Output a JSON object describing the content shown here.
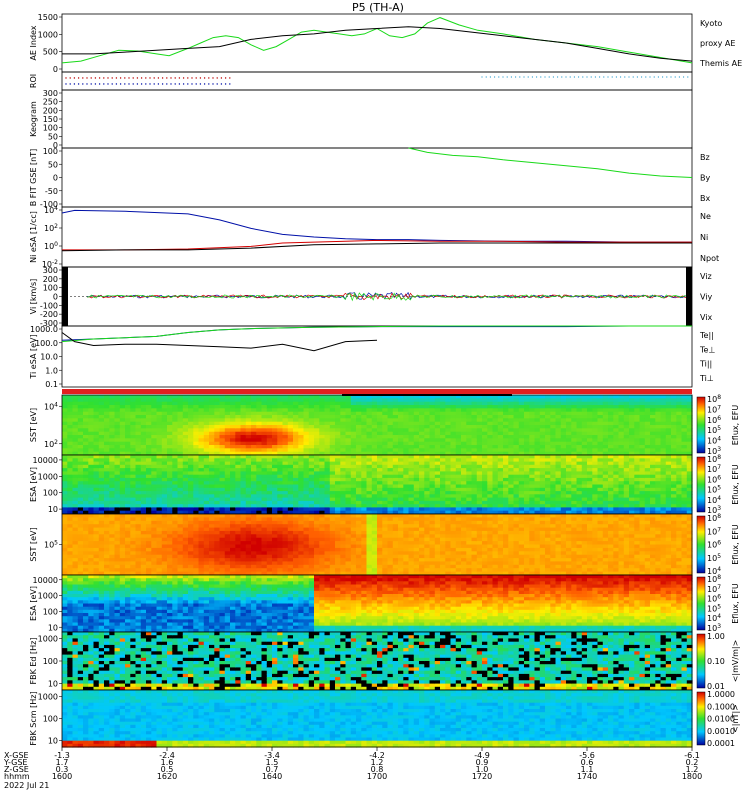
{
  "title": "P5 (TH-A)",
  "date": "2022 Jul 21",
  "colors": {
    "red": "#d40000",
    "green": "#19d919",
    "blue": "#0010a8",
    "black": "#000000"
  },
  "xaxis": {
    "row_labels": [
      "X-GSE",
      "Y-GSE",
      "Z-GSE",
      "hhmm"
    ],
    "ticks": [
      {
        "x": "-1.3",
        "y": "1.7",
        "z": "0.3",
        "t": "1600"
      },
      {
        "x": "-2.4",
        "y": "1.6",
        "z": "0.5",
        "t": "1620"
      },
      {
        "x": "-3.4",
        "y": "1.5",
        "z": "0.7",
        "t": "1640"
      },
      {
        "x": "-4.2",
        "y": "1.2",
        "z": "0.8",
        "t": "1700"
      },
      {
        "x": "-4.9",
        "y": "0.9",
        "z": "1.0",
        "t": "1720"
      },
      {
        "x": "-5.6",
        "y": "0.6",
        "z": "1.1",
        "t": "1740"
      },
      {
        "x": "-6.1",
        "y": "0.2",
        "z": "1.2",
        "t": "1800"
      }
    ]
  },
  "chart_data": [
    {
      "type": "line",
      "ylabel": "AE Index",
      "ylim": [
        0,
        1600
      ],
      "yticks": [
        "0",
        "500",
        "1000",
        "1500"
      ],
      "legend": [
        {
          "text": "Kyoto",
          "color": "green"
        },
        {
          "text": "proxy AE",
          "color": "green"
        },
        {
          "text": "Themis AE",
          "color": "black"
        }
      ],
      "series": [
        {
          "name": "Kyoto proxy AE",
          "color": "green",
          "x": [
            0,
            3,
            6,
            9,
            12,
            15,
            17,
            20,
            22,
            24,
            26,
            28,
            30,
            32,
            34,
            36,
            38,
            40,
            42,
            44,
            46,
            48,
            50,
            52,
            54,
            56,
            58,
            60,
            63,
            66,
            70,
            75,
            80,
            85,
            90,
            95,
            100
          ],
          "y": [
            250,
            300,
            450,
            600,
            580,
            500,
            450,
            650,
            800,
            950,
            1000,
            950,
            750,
            600,
            700,
            900,
            1100,
            1150,
            1100,
            1050,
            1000,
            1050,
            1200,
            1000,
            950,
            1050,
            1350,
            1500,
            1300,
            1150,
            1050,
            900,
            800,
            700,
            550,
            400,
            250
          ]
        },
        {
          "name": "Themis AE",
          "color": "black",
          "x": [
            0,
            5,
            10,
            15,
            20,
            25,
            30,
            35,
            40,
            45,
            50,
            55,
            60,
            65,
            70,
            75,
            80,
            85,
            90,
            95,
            100
          ],
          "y": [
            500,
            500,
            550,
            600,
            650,
            700,
            900,
            1000,
            1050,
            1150,
            1200,
            1250,
            1200,
            1100,
            1000,
            900,
            800,
            650,
            500,
            380,
            300
          ]
        }
      ]
    },
    {
      "type": "scatter",
      "ylabel": "ROI",
      "ylim": [
        0,
        1
      ],
      "yticks": []
    },
    {
      "type": "line",
      "ylabel": "Keogram",
      "ylim": [
        0,
        300
      ],
      "yticks": [
        "0",
        "50",
        "100",
        "150",
        "200",
        "250",
        "300"
      ]
    },
    {
      "type": "line",
      "ylabel": "B FIT GSE [nT]",
      "ylim": [
        -100,
        100
      ],
      "yticks": [
        "-100",
        "-50",
        "0",
        "50",
        "100"
      ],
      "legend": [
        {
          "text": "Bz",
          "color": "red"
        },
        {
          "text": "By",
          "color": "green"
        },
        {
          "text": "Bx",
          "color": "blue"
        }
      ],
      "series": [
        {
          "name": "By",
          "color": "green",
          "x": [
            55,
            58,
            62,
            66,
            70,
            75,
            80,
            85,
            90,
            95,
            100
          ],
          "y": [
            100,
            85,
            75,
            70,
            60,
            50,
            40,
            30,
            15,
            5,
            0
          ]
        }
      ]
    },
    {
      "type": "line",
      "ylabel": "Ni eSA [1/cc]",
      "ylim": [
        -2,
        5
      ],
      "log": true,
      "yticks": [
        "10^-2",
        "10^0",
        "10^2",
        "10^4"
      ],
      "legend": [
        {
          "text": "Ne",
          "color": "red"
        },
        {
          "text": "Ni",
          "color": "black"
        },
        {
          "text": "Npot",
          "color": "blue"
        }
      ],
      "series": [
        {
          "name": "Npot",
          "color": "blue",
          "x": [
            0,
            2,
            10,
            20,
            25,
            30,
            35,
            40,
            45,
            50,
            55,
            60,
            70,
            80,
            90,
            100
          ],
          "y": [
            4.3,
            4.6,
            4.5,
            4.2,
            3.5,
            2.5,
            1.8,
            1.5,
            1.3,
            1.2,
            1.2,
            1.1,
            1.0,
            1.0,
            0.9,
            0.9
          ]
        },
        {
          "name": "Ne",
          "color": "red",
          "x": [
            0,
            10,
            20,
            30,
            35,
            40,
            45,
            50,
            60,
            70,
            80,
            90,
            100
          ],
          "y": [
            0,
            0,
            0.1,
            0.4,
            0.8,
            0.9,
            1.0,
            1.1,
            1.0,
            1.0,
            0.9,
            0.9,
            0.9
          ]
        },
        {
          "name": "Ni",
          "color": "black",
          "x": [
            0,
            10,
            20,
            30,
            40,
            50,
            60,
            70,
            80,
            90,
            100
          ],
          "y": [
            -0.1,
            0,
            0,
            0.2,
            0.6,
            0.7,
            0.8,
            0.8,
            0.8,
            0.8,
            0.8
          ]
        }
      ]
    },
    {
      "type": "line",
      "ylabel": "Vi [km/s]",
      "ylim": [
        -350,
        350
      ],
      "yticks": [
        "-300",
        "-200",
        "-100",
        "0",
        "100",
        "200",
        "300"
      ],
      "legend": [
        {
          "text": "Viz",
          "color": "red"
        },
        {
          "text": "Viy",
          "color": "green"
        },
        {
          "text": "Vix",
          "color": "blue"
        }
      ]
    },
    {
      "type": "line",
      "ylabel": "Ti eSA [eV]",
      "ylim": [
        -1.2,
        3.5
      ],
      "log": true,
      "yticks": [
        "0.1",
        "1.0",
        "10.0",
        "100.0",
        "1000.0"
      ],
      "legend": [
        {
          "text": "Te||",
          "color": "black"
        },
        {
          "text": "Te⊥",
          "color": "red"
        },
        {
          "text": "Ti||",
          "color": "green"
        },
        {
          "text": "Ti⊥",
          "color": "blue"
        }
      ],
      "series": [
        {
          "name": "Ti⊥",
          "color": "blue",
          "x": [
            0,
            5,
            10,
            15,
            20,
            25,
            30,
            40,
            50,
            60,
            70,
            80,
            90,
            100
          ],
          "y": [
            2.4,
            2.5,
            2.6,
            2.7,
            3.0,
            3.2,
            3.3,
            3.4,
            3.45,
            3.45,
            3.45,
            3.45,
            3.5,
            3.5
          ]
        },
        {
          "name": "Ti||",
          "color": "green",
          "x": [
            0,
            5,
            10,
            15,
            20,
            25,
            30,
            40,
            50,
            60,
            70,
            80,
            90,
            100
          ],
          "y": [
            2.3,
            2.5,
            2.6,
            2.7,
            3.0,
            3.2,
            3.3,
            3.4,
            3.45,
            3.5,
            3.5,
            3.5,
            3.5,
            3.5
          ]
        },
        {
          "name": "Te||",
          "color": "black",
          "x": [
            0,
            2,
            5,
            10,
            15,
            20,
            25,
            30,
            35,
            40,
            45,
            50
          ],
          "y": [
            3.0,
            2.3,
            2.0,
            2.1,
            2.1,
            2.0,
            1.9,
            1.8,
            2.1,
            1.6,
            2.3,
            2.4
          ]
        }
      ]
    },
    {
      "type": "heatmap",
      "ylabel": "SST [eV]",
      "yticks": [
        "10^2",
        "10^4"
      ],
      "colorbar": {
        "label": "Eflux, EFU",
        "ticks": [
          "10^3",
          "10^4",
          "10^5",
          "10^6",
          "10^7",
          "10^8"
        ]
      }
    },
    {
      "type": "heatmap",
      "ylabel": "ESA [eV]",
      "yticks": [
        "10",
        "100",
        "1000",
        "10000"
      ],
      "colorbar": {
        "label": "Eflux, EFU",
        "ticks": [
          "10^3",
          "10^4",
          "10^5",
          "10^6",
          "10^7",
          "10^8"
        ]
      }
    },
    {
      "type": "heatmap",
      "ylabel": "SST [eV]",
      "yticks": [
        "10^5"
      ],
      "colorbar": {
        "label": "Eflux, EFU",
        "ticks": [
          "10^4",
          "10^5",
          "10^6",
          "10^7",
          "10^8"
        ]
      }
    },
    {
      "type": "heatmap",
      "ylabel": "ESA [eV]",
      "yticks": [
        "10",
        "100",
        "1000",
        "10000"
      ],
      "colorbar": {
        "label": "Eflux, EFU",
        "ticks": [
          "10^3",
          "10^4",
          "10^5",
          "10^6",
          "10^7",
          "10^8"
        ]
      }
    },
    {
      "type": "heatmap",
      "ylabel": "FBK Ed [Hz]",
      "yticks": [
        "10",
        "100",
        "1000"
      ],
      "colorbar": {
        "label": "<|mV/m|>",
        "ticks": [
          "0.01",
          "0.10",
          "1.00"
        ]
      }
    },
    {
      "type": "heatmap",
      "ylabel": "FBK Scm [Hz]",
      "yticks": [
        "10",
        "100",
        "1000"
      ],
      "colorbar": {
        "label": "<|nT|>",
        "ticks": [
          "0.0001",
          "0.0010",
          "0.0100",
          "0.1000",
          "1.0000"
        ]
      }
    }
  ]
}
